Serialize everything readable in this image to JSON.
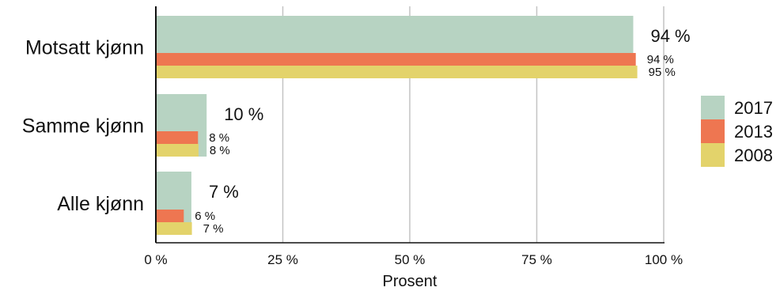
{
  "chart_data": {
    "type": "bar",
    "orientation": "horizontal",
    "categories": [
      "Motsatt kjønn",
      "Samme kjønn",
      "Alle kjønn"
    ],
    "series": [
      {
        "name": "2017",
        "color": "#b7d3c2",
        "values": [
          94,
          10,
          7
        ],
        "labels": [
          "94 %",
          "10 %",
          "7 %"
        ]
      },
      {
        "name": "2013",
        "color": "#ee7651",
        "values": [
          94.5,
          8.3,
          5.5
        ],
        "labels": [
          "94 %",
          "8 %",
          "6 %"
        ]
      },
      {
        "name": "2008",
        "color": "#e3d36b",
        "values": [
          94.8,
          8.4,
          7.1
        ],
        "labels": [
          "95 %",
          "8 %",
          "7 %"
        ]
      }
    ],
    "xlabel": "Prosent",
    "xlim": [
      0,
      100
    ],
    "xticks": [
      0,
      25,
      50,
      75,
      100
    ],
    "xtick_labels": [
      "0 %",
      "25 %",
      "50 %",
      "75 %",
      "100 %"
    ],
    "grid": true,
    "legend": "right"
  }
}
